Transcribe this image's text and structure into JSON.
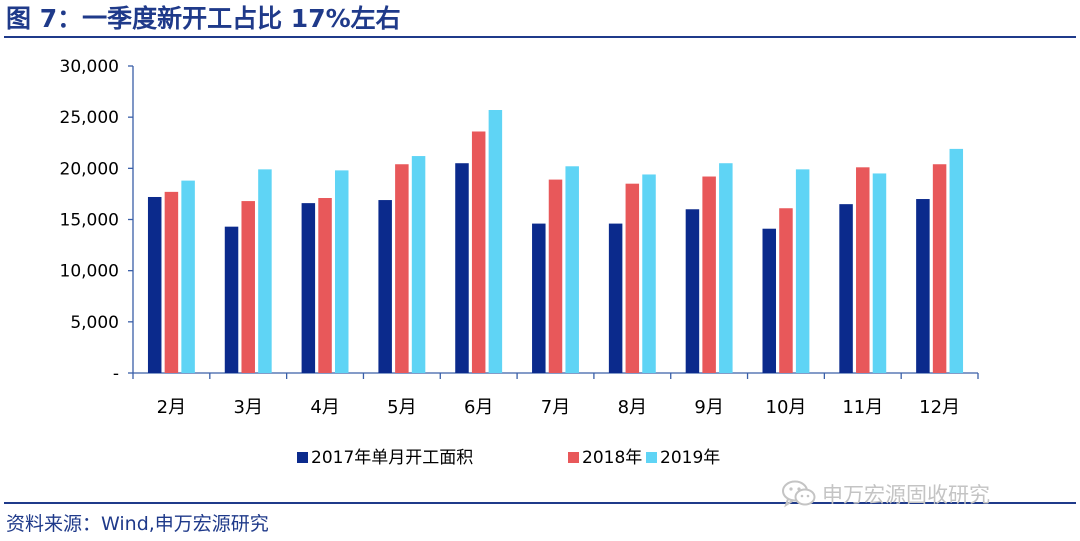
{
  "title": "图 7：一季度新开工占比 17%左右",
  "source": "资料来源：Wind,申万宏源研究",
  "watermark": "申万宏源固收研究",
  "colors": {
    "accent": "#1f3a8a",
    "series": [
      "#0b2a8c",
      "#e8585a",
      "#5fd4f5"
    ],
    "axis": "#3a5fa8",
    "watermark": "#c4c4c4"
  },
  "chart_data": {
    "type": "bar",
    "title": "图 7：一季度新开工占比 17%左右",
    "xlabel": "",
    "ylabel": "",
    "categories": [
      "2月",
      "3月",
      "4月",
      "5月",
      "6月",
      "7月",
      "8月",
      "9月",
      "10月",
      "11月",
      "12月"
    ],
    "series": [
      {
        "name": "2017年单月开工面积",
        "values": [
          17200,
          14300,
          16600,
          16900,
          20500,
          14600,
          14600,
          16000,
          14100,
          16500,
          17000
        ]
      },
      {
        "name": "2018年",
        "values": [
          17700,
          16800,
          17100,
          20400,
          23600,
          18900,
          18500,
          19200,
          16100,
          20100,
          20400
        ]
      },
      {
        "name": "2019年",
        "values": [
          18800,
          19900,
          19800,
          21200,
          25700,
          20200,
          19400,
          20500,
          19900,
          19500,
          21900
        ]
      }
    ],
    "ylim": [
      0,
      30000
    ],
    "yticks": [
      0,
      5000,
      10000,
      15000,
      20000,
      25000,
      30000
    ],
    "ytick_labels": [
      "-",
      "5,000",
      "10,000",
      "15,000",
      "20,000",
      "25,000",
      "30,000"
    ],
    "grid": false,
    "legend_position": "bottom-center"
  }
}
